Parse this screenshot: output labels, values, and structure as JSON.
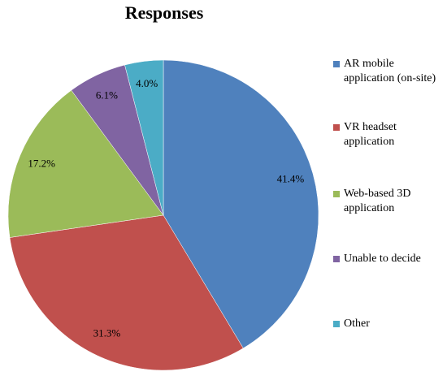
{
  "chart_data": {
    "type": "pie",
    "title": "Responses",
    "categories": [
      "AR mobile application (on-site)",
      "VR headset application",
      "Web-based 3D application",
      "Unable to decide",
      "Other"
    ],
    "values": [
      41.4,
      31.3,
      17.2,
      6.1,
      4.0
    ],
    "value_labels": [
      "41.4%",
      "31.3%",
      "17.2%",
      "6.1%",
      "4.0%"
    ],
    "colors": [
      "#4f81bd",
      "#c0504d",
      "#9bbb59",
      "#8064a2",
      "#4bacc6"
    ],
    "legend": "right"
  }
}
